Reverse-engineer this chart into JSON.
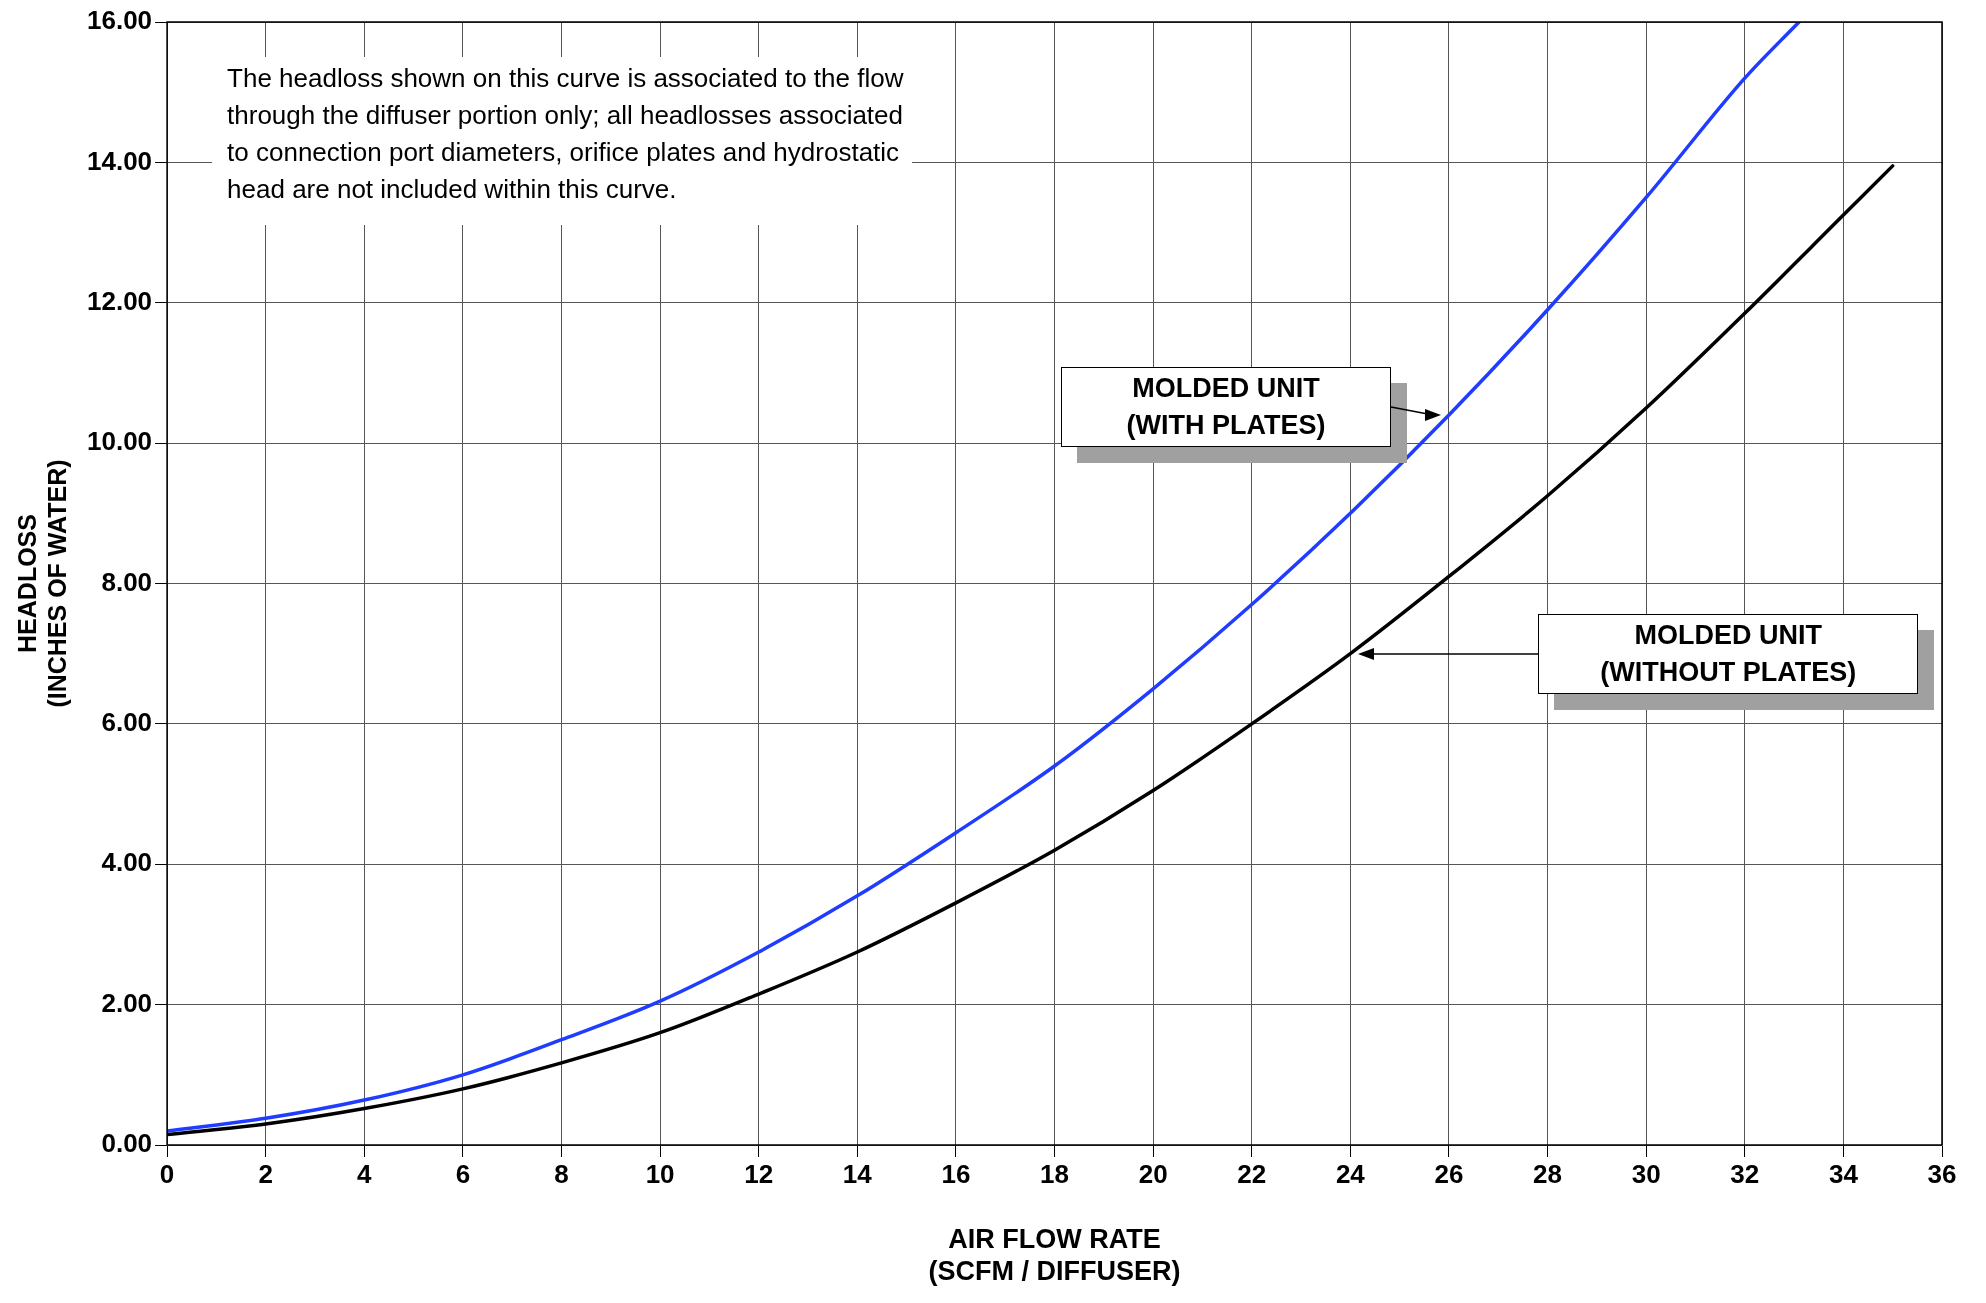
{
  "chart_data": {
    "type": "line",
    "xlabel": "AIR FLOW RATE (SCFM / DIFFUSER)",
    "ylabel": "HEADLOSS (INCHES OF WATER)",
    "xlim": [
      0,
      36
    ],
    "xticks": [
      0,
      2,
      4,
      6,
      8,
      10,
      12,
      14,
      16,
      18,
      20,
      22,
      24,
      26,
      28,
      30,
      32,
      34,
      36
    ],
    "ylim": [
      0,
      16
    ],
    "yticks": [
      {
        "value": 0,
        "label": "0.00"
      },
      {
        "value": 2,
        "label": "2.00"
      },
      {
        "value": 4,
        "label": "4.00"
      },
      {
        "value": 6,
        "label": "6.00"
      },
      {
        "value": 8,
        "label": "8.00"
      },
      {
        "value": 10,
        "label": "10.00"
      },
      {
        "value": 12,
        "label": "12.00"
      },
      {
        "value": 14,
        "label": "14.00"
      },
      {
        "value": 16,
        "label": "16.00"
      }
    ],
    "grid": true,
    "marker": "none",
    "line_style": "solid",
    "series": [
      {
        "name": "MOLDED UNIT (WITH PLATES)",
        "color": "#1f3cff",
        "x": [
          0,
          2,
          4,
          6,
          8,
          10,
          12,
          14,
          16,
          18,
          20,
          22,
          24,
          26,
          28,
          30,
          32,
          33.1
        ],
        "values": [
          0.2,
          0.38,
          0.64,
          1.0,
          1.5,
          2.05,
          2.75,
          3.55,
          4.45,
          5.4,
          6.5,
          7.7,
          9.0,
          10.4,
          11.9,
          13.5,
          15.2,
          16.0
        ]
      },
      {
        "name": "MOLDED UNIT (WITHOUT PLATES)",
        "color": "#000000",
        "x": [
          0,
          2,
          4,
          6,
          8,
          10,
          12,
          14,
          16,
          18,
          20,
          22,
          24,
          26,
          28,
          30,
          32,
          34,
          35
        ],
        "values": [
          0.15,
          0.3,
          0.52,
          0.8,
          1.17,
          1.6,
          2.15,
          2.75,
          3.45,
          4.2,
          5.05,
          6.0,
          7.0,
          8.1,
          9.25,
          10.5,
          11.85,
          13.25,
          13.95
        ]
      }
    ],
    "annotations": [
      "The headloss shown on this curve is associated to the flow through the diffuser portion only; all headlosses associated to connection port diameters, orifice plates and hydrostatic head are not included within this curve."
    ]
  }
}
